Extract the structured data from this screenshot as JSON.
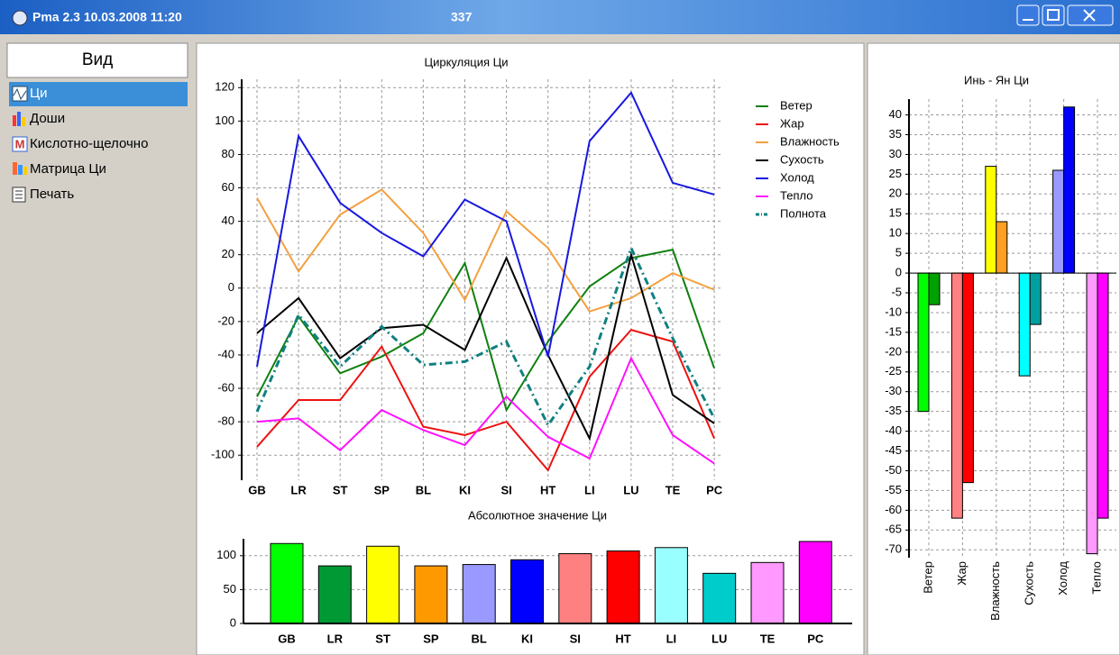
{
  "window": {
    "title": "Pma 2.3 10.03.2008 11:20",
    "caption_fragment": "337"
  },
  "sidebar": {
    "header": "Вид",
    "items": [
      "Ци",
      "Доши",
      "Кислотно-щелочно",
      "Матрица Ци",
      "Печать"
    ]
  },
  "chart_data": [
    {
      "type": "line",
      "title": "Циркуляция Ци",
      "categories": [
        "GB",
        "LR",
        "ST",
        "SP",
        "BL",
        "KI",
        "SI",
        "HT",
        "LI",
        "LU",
        "TE",
        "PC"
      ],
      "series": [
        {
          "name": "Ветер",
          "color": "#108010",
          "values": [
            -65,
            -17,
            -51,
            -41,
            -27,
            15,
            -73,
            -32,
            1,
            18,
            23,
            -48
          ]
        },
        {
          "name": "Жар",
          "color": "#ee1111",
          "values": [
            -95,
            -67,
            -67,
            -35,
            -83,
            -88,
            -80,
            -109,
            -53,
            -25,
            -32,
            -90
          ]
        },
        {
          "name": "Влажность",
          "color": "#f4a040",
          "values": [
            54,
            10,
            44,
            59,
            33,
            -7,
            46,
            24,
            -14,
            -6,
            9,
            -1
          ]
        },
        {
          "name": "Сухость",
          "color": "#000000",
          "values": [
            -27,
            -6,
            -42,
            -24,
            -22,
            -37,
            18,
            -40,
            -90,
            20,
            -64,
            -81
          ]
        },
        {
          "name": "Холод",
          "color": "#1818e0",
          "values": [
            -47,
            91,
            51,
            33,
            19,
            53,
            40,
            -41,
            88,
            117,
            63,
            56
          ]
        },
        {
          "name": "Тепло",
          "color": "#ff10ff",
          "values": [
            -80,
            -78,
            -97,
            -73,
            -85,
            -94,
            -65,
            -89,
            -102,
            -42,
            -88,
            -105
          ]
        },
        {
          "name": "Полнота",
          "color": "#108080",
          "style": "dash-dot",
          "values": [
            -74,
            -16,
            -47,
            -23,
            -46,
            -44,
            -32,
            -82,
            -47,
            24,
            -30,
            -78
          ]
        }
      ],
      "ylim": [
        -115,
        125
      ],
      "yticks": [
        -100,
        -80,
        -60,
        -40,
        -20,
        0,
        20,
        40,
        60,
        80,
        100,
        120
      ],
      "grid": true,
      "legend": "upper right"
    },
    {
      "type": "bar",
      "title": "Абсолютное значение Ци",
      "categories": [
        "GB",
        "LR",
        "ST",
        "SP",
        "BL",
        "KI",
        "SI",
        "HT",
        "LI",
        "LU",
        "TE",
        "PC"
      ],
      "values": [
        118,
        85,
        114,
        85,
        87,
        94,
        103,
        107,
        112,
        74,
        90,
        121
      ],
      "colors": [
        "#00ff00",
        "#009933",
        "#ffff00",
        "#ff9900",
        "#9999ff",
        "#0000ff",
        "#ff8080",
        "#ff0000",
        "#99ffff",
        "#00cccc",
        "#ff99ff",
        "#ff00ff"
      ],
      "ylim": [
        0,
        125
      ],
      "yticks": [
        0,
        50,
        100
      ],
      "grid": true
    },
    {
      "type": "grouped_bar",
      "title": "Инь - Ян Ци",
      "categories": [
        "Ветер",
        "Жар",
        "Влажность",
        "Сухость",
        "Холод",
        "Тепло"
      ],
      "series": [
        {
          "colors": [
            "#00ff00",
            "#ff8080",
            "#ffff00",
            "#00ffff",
            "#9999ff",
            "#ff99ff"
          ],
          "values": [
            -35,
            -62,
            27,
            -26,
            26,
            -71
          ]
        },
        {
          "colors": [
            "#00a000",
            "#ff0000",
            "#ffa020",
            "#00a0a0",
            "#0000ff",
            "#ff00ff"
          ],
          "values": [
            -8,
            -53,
            13,
            -13,
            42,
            -62
          ]
        }
      ],
      "ylim": [
        -72,
        44
      ],
      "yticks": [
        -70,
        -65,
        -60,
        -55,
        -50,
        -45,
        -40,
        -35,
        -30,
        -25,
        -20,
        -15,
        -10,
        -5,
        0,
        5,
        10,
        15,
        20,
        25,
        30,
        35,
        40
      ],
      "grid": true
    }
  ]
}
